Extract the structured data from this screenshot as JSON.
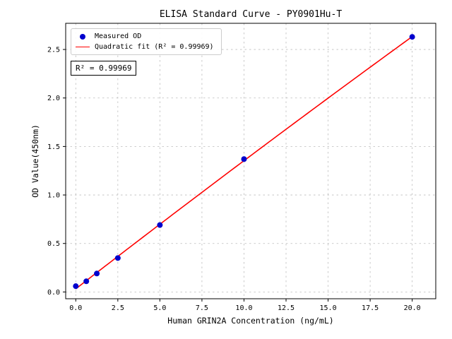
{
  "chart_data": {
    "type": "scatter",
    "title": "ELISA Standard Curve - PY0901Hu-T",
    "xlabel": "Human GRIN2A Concentration (ng/mL)",
    "ylabel": "OD Value(450nm)",
    "xlim": [
      -0.6,
      21.4
    ],
    "ylim": [
      -0.07,
      2.77
    ],
    "xticks": [
      0.0,
      2.5,
      5.0,
      7.5,
      10.0,
      12.5,
      15.0,
      17.5,
      20.0
    ],
    "yticks": [
      0.0,
      0.5,
      1.0,
      1.5,
      2.0,
      2.5
    ],
    "grid": true,
    "legend_position": "upper-left",
    "annotation": "R² = 0.99969",
    "series": [
      {
        "name": "Measured OD",
        "type": "scatter",
        "color": "#0000cd",
        "x": [
          0,
          0.625,
          1.25,
          2.5,
          5,
          10,
          20
        ],
        "y": [
          0.06,
          0.11,
          0.19,
          0.35,
          0.69,
          1.37,
          2.63
        ]
      },
      {
        "name": "Quadratic fit (R² = 0.99969)",
        "type": "line",
        "color": "#ff0000",
        "fit": "quadratic",
        "r_squared": 0.99969
      }
    ]
  }
}
